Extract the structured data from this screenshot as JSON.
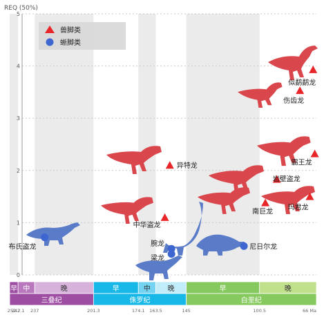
{
  "chart_data": {
    "type": "scatter",
    "ylabel": "REQ (50%)",
    "xunit": "Ma",
    "xlim": [
      252.2,
      66
    ],
    "ylim": [
      0,
      5
    ],
    "yticks": [
      0,
      1,
      2,
      3,
      4,
      5
    ],
    "legend": [
      {
        "label": "兽脚类",
        "marker": "triangle",
        "color": "#e8262a"
      },
      {
        "label": "蜥脚类",
        "marker": "circle",
        "color": "#3d66d1"
      }
    ],
    "legend_position": "top-left",
    "colors": {
      "theropod": "#e8262a",
      "sauropod": "#3d66d1",
      "theropod_silhouette": "#d9464b",
      "sauropod_silhouette": "#5a7cc8"
    },
    "series": [
      {
        "name": "兽脚类",
        "marker": "triangle",
        "points": [
          {
            "label": "异特龙",
            "x": 155,
            "y": 2.1
          },
          {
            "label": "中华盗龙",
            "x": 158,
            "y": 1.1
          },
          {
            "label": "似鹬鹬龙",
            "x": 68,
            "y": 3.93
          },
          {
            "label": "伤齿龙",
            "x": 76,
            "y": 3.53
          },
          {
            "label": "霸王龙",
            "x": 67,
            "y": 2.32
          },
          {
            "label": "岩壁盗龙",
            "x": 90,
            "y": 1.83
          },
          {
            "label": "南巨龙",
            "x": 97,
            "y": 1.38
          },
          {
            "label": "玛君龙",
            "x": 70,
            "y": 1.5
          }
        ]
      },
      {
        "name": "蜥脚类",
        "marker": "circle",
        "points": [
          {
            "label": "布氏盗龙",
            "x": 231,
            "y": 0.72
          },
          {
            "label": "腕龙",
            "x": 154,
            "y": 0.5
          },
          {
            "label": "梁龙",
            "x": 154,
            "y": 0.4
          },
          {
            "label": "尼日尔龙",
            "x": 110,
            "y": 0.55
          }
        ]
      }
    ],
    "timescale": {
      "epochs": [
        {
          "label": "早",
          "start": 252.2,
          "end": 247.1,
          "color": "#9d4ea3",
          "text_color": "#ffffff"
        },
        {
          "label": "中",
          "start": 247.1,
          "end": 237,
          "color": "#b978bd",
          "text_color": "#ffffff"
        },
        {
          "label": "晚",
          "start": 237,
          "end": 201.3,
          "color": "#d7b3db",
          "text_color": "#333333"
        },
        {
          "label": "早",
          "start": 201.3,
          "end": 174.1,
          "color": "#17b8e8",
          "text_color": "#ffffff"
        },
        {
          "label": "中",
          "start": 174.1,
          "end": 163.5,
          "color": "#73d3f1",
          "text_color": "#333333"
        },
        {
          "label": "晚",
          "start": 163.5,
          "end": 145,
          "color": "#c1ecf9",
          "text_color": "#333333"
        },
        {
          "label": "早",
          "start": 145,
          "end": 100.5,
          "color": "#86c95e",
          "text_color": "#ffffff"
        },
        {
          "label": "晚",
          "start": 100.5,
          "end": 66,
          "color": "#c0e08c",
          "text_color": "#333333"
        }
      ],
      "periods": [
        {
          "label": "三叠纪",
          "start": 252.2,
          "end": 201.3,
          "color": "#9d4ea3"
        },
        {
          "label": "侏罗纪",
          "start": 201.3,
          "end": 145,
          "color": "#17b8e8"
        },
        {
          "label": "白垩纪",
          "start": 145,
          "end": 66,
          "color": "#86c95e"
        }
      ],
      "boundary_labels": [
        "252.2",
        "247.1",
        "237",
        "201.3",
        "174.1",
        "163.5",
        "145",
        "100.5",
        "66 Ma"
      ]
    }
  }
}
